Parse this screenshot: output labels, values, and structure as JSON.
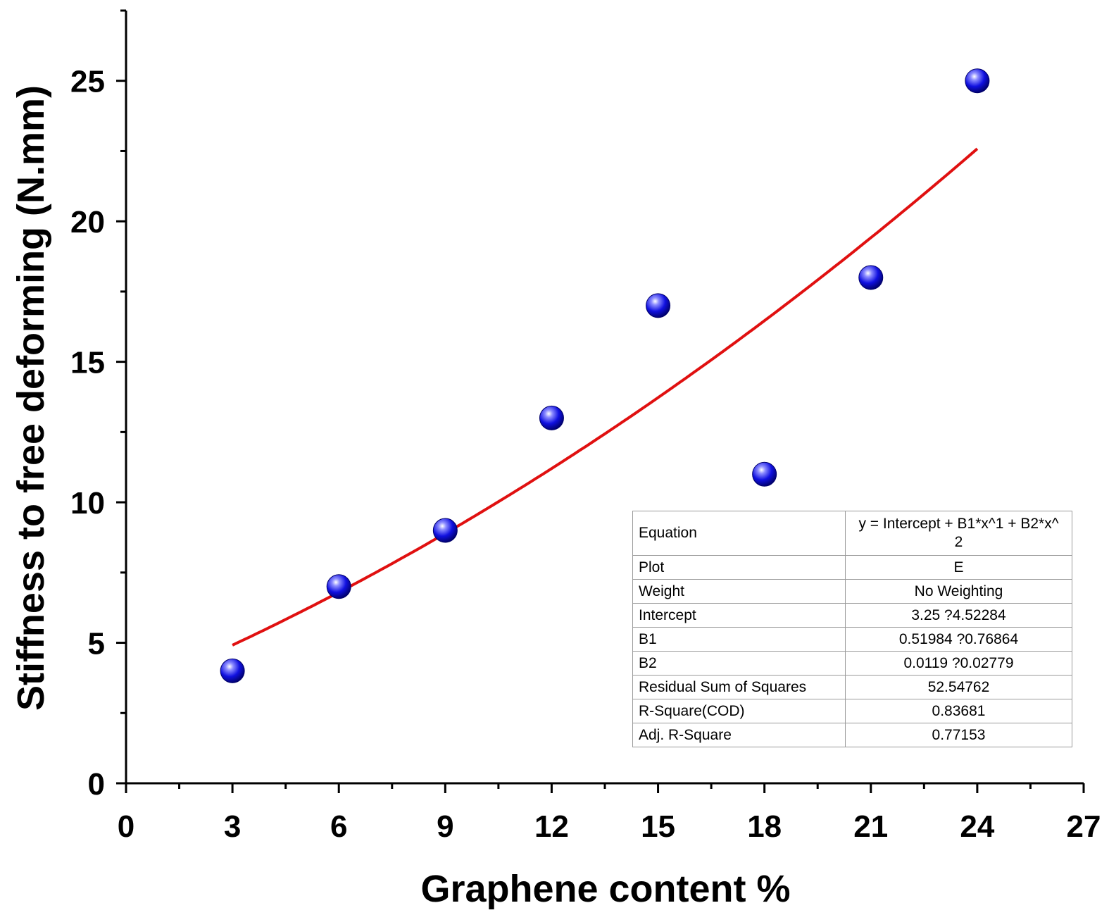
{
  "chart_data": {
    "type": "scatter",
    "xlabel": "Graphene content %",
    "ylabel": "Stiffness to free deforming (N.mm)",
    "xlim": [
      0,
      27
    ],
    "ylim": [
      0,
      27.5
    ],
    "xticks": [
      "0",
      "3",
      "6",
      "9",
      "12",
      "15",
      "18",
      "21",
      "24",
      "27"
    ],
    "yticks": [
      "0",
      "5",
      "10",
      "15",
      "20",
      "25"
    ],
    "x": [
      3,
      6,
      9,
      12,
      15,
      18,
      21,
      24
    ],
    "y": [
      4,
      7,
      9,
      13,
      17,
      11,
      18,
      25
    ],
    "fit": {
      "type": "polynomial",
      "intercept": 3.25,
      "b1": 0.51984,
      "b2": 0.0119,
      "x_range": [
        3,
        24
      ]
    },
    "marker_color": "#1010e0",
    "fit_color": "#e01010",
    "grid": false,
    "fit_table": [
      {
        "key": "Equation",
        "value": "y = Intercept + B1*x^1 + B2*x^",
        "value2": "2"
      },
      {
        "key": "Plot",
        "value": "E"
      },
      {
        "key": "Weight",
        "value": "No Weighting"
      },
      {
        "key": "Intercept",
        "value": "3.25 ?4.52284"
      },
      {
        "key": "B1",
        "value": "0.51984 ?0.76864"
      },
      {
        "key": "B2",
        "value": "0.0119 ?0.02779"
      },
      {
        "key": "Residual Sum of Squares",
        "value": "52.54762"
      },
      {
        "key": "R-Square(COD)",
        "value": "0.83681"
      },
      {
        "key": "Adj. R-Square",
        "value": "0.77153"
      }
    ]
  }
}
